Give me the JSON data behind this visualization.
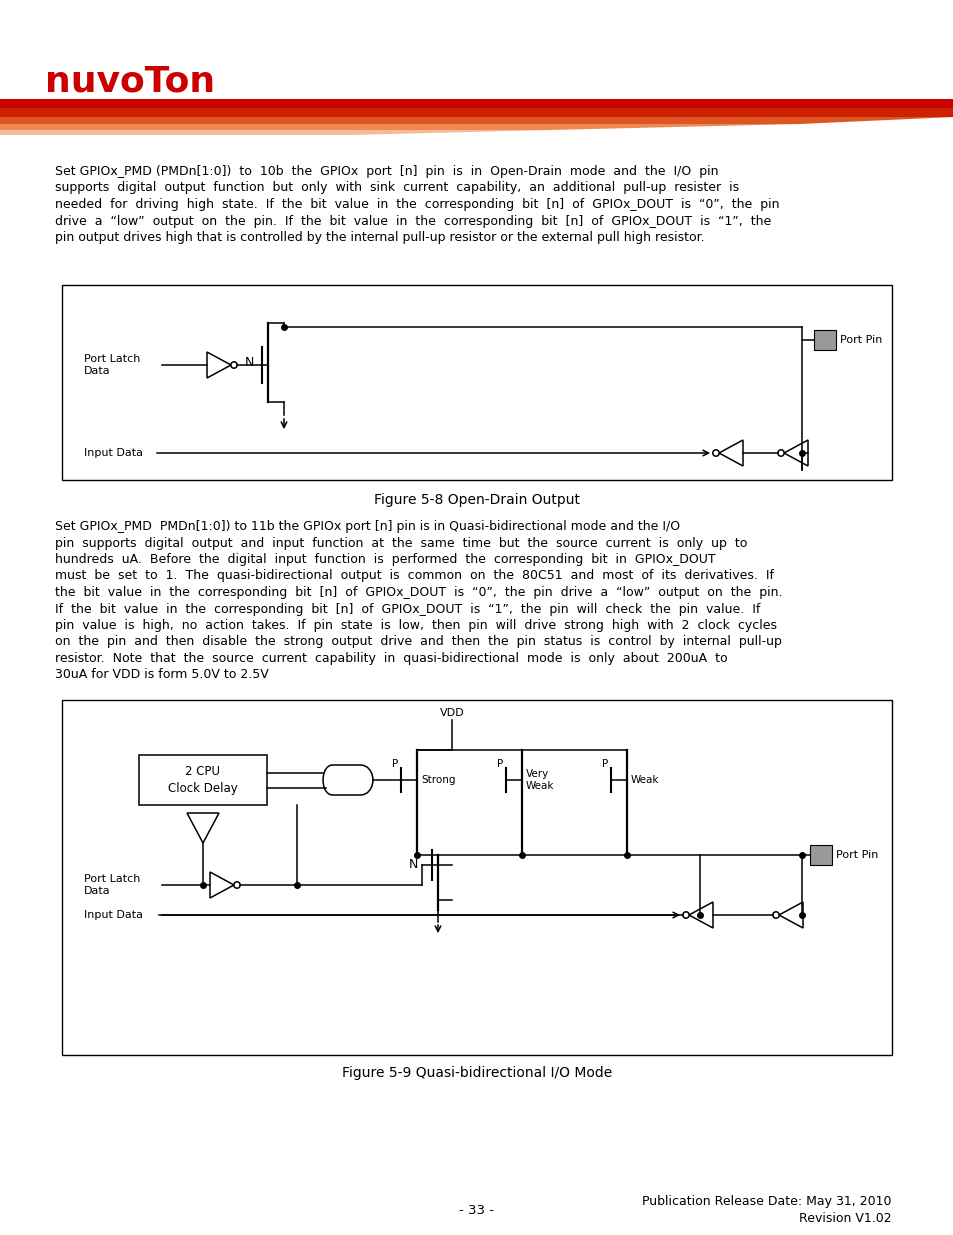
{
  "page_bg": "#ffffff",
  "logo_text": "nuvoTon",
  "logo_color": "#cc0000",
  "para1_lines": [
    "Set GPIOx_PMD (PMDn[1:0])  to  10b  the  GPIOx  port  [n]  pin  is  in  Open-Drain  mode  and  the  I/O  pin",
    "supports  digital  output  function  but  only  with  sink  current  capability,  an  additional  pull-up  resister  is",
    "needed  for  driving  high  state.  If  the  bit  value  in  the  corresponding  bit  [n]  of  GPIOx_DOUT  is  “0”,  the  pin",
    "drive  a  “low”  output  on  the  pin.  If  the  bit  value  in  the  corresponding  bit  [n]  of  GPIOx_DOUT  is  “1”,  the",
    "pin output drives high that is controlled by the internal pull-up resistor or the external pull high resistor."
  ],
  "fig1_caption": "Figure 5-8 Open-Drain Output",
  "para2_lines": [
    "Set GPIOx_PMD  PMDn[1:0]) to 11b the GPIOx port [n] pin is in Quasi-bidirectional mode and the I/O",
    "pin  supports  digital  output  and  input  function  at  the  same  time  but  the  source  current  is  only  up  to",
    "hundreds  uA.  Before  the  digital  input  function  is  performed  the  corresponding  bit  in  GPIOx_DOUT",
    "must  be  set  to  1.  The  quasi-bidirectional  output  is  common  on  the  80C51  and  most  of  its  derivatives.  If",
    "the  bit  value  in  the  corresponding  bit  [n]  of  GPIOx_DOUT  is  “0”,  the  pin  drive  a  “low”  output  on  the  pin.",
    "If  the  bit  value  in  the  corresponding  bit  [n]  of  GPIOx_DOUT  is  “1”,  the  pin  will  check  the  pin  value.  If",
    "pin  value  is  high,  no  action  takes.  If  pin  state  is  low,  then  pin  will  drive  strong  high  with  2  clock  cycles",
    "on  the  pin  and  then  disable  the  strong  output  drive  and  then  the  pin  status  is  control  by  internal  pull-up",
    "resistor.  Note  that  the  source  current  capability  in  quasi-bidirectional  mode  is  only  about  200uA  to",
    "30uA for VDD is form 5.0V to 2.5V"
  ],
  "fig2_caption": "Figure 5-9 Quasi-bidirectional I/O Mode",
  "footer_left": "- 33 -",
  "footer_right_line1": "Publication Release Date: May 31, 2010",
  "footer_right_line2": "Revision V1.02",
  "gray_box_color": "#999999"
}
